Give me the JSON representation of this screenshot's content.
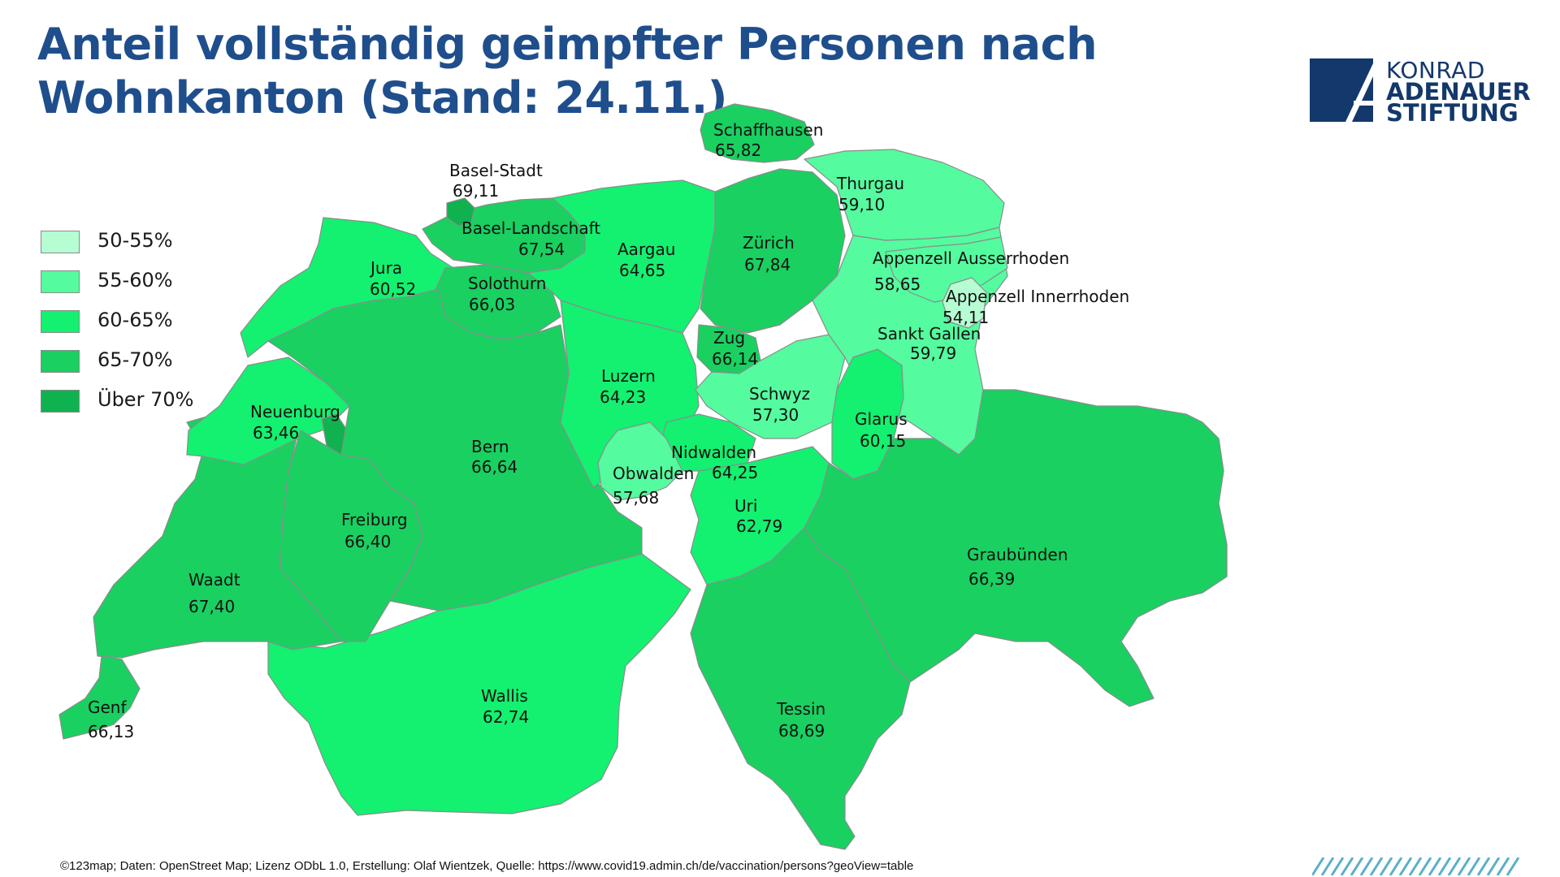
{
  "title": {
    "line1": "Anteil vollständig geimpfter Personen nach",
    "line2": "Wohnkanton (Stand: 24.11.)"
  },
  "logo": {
    "line1": "KONRAD",
    "line2": "ADENAUER",
    "line3": "STIFTUNG",
    "color": "#13386b"
  },
  "legend": [
    {
      "label": "50-55%",
      "color": "#b7fdd3"
    },
    {
      "label": "55-60%",
      "color": "#54fb9f"
    },
    {
      "label": "60-65%",
      "color": "#14f070"
    },
    {
      "label": "65-70%",
      "color": "#19d061"
    },
    {
      "label": "Über 70%",
      "color": "#0fb24f"
    }
  ],
  "cantons": [
    {
      "name": "Schaffhausen",
      "value": "65,82"
    },
    {
      "name": "Basel-Stadt",
      "value": "69,11"
    },
    {
      "name": "Thurgau",
      "value": "59,10"
    },
    {
      "name": "Basel-Landschaft",
      "value": "67,54"
    },
    {
      "name": "Aargau",
      "value": "64,65"
    },
    {
      "name": "Zürich",
      "value": "67,84"
    },
    {
      "name": "Appenzell Ausserrhoden",
      "value": "58,65"
    },
    {
      "name": "Jura",
      "value": "60,52"
    },
    {
      "name": "Solothurn",
      "value": "66,03"
    },
    {
      "name": "Appenzell Innerrhoden",
      "value": "54,11"
    },
    {
      "name": "Zug",
      "value": "66,14"
    },
    {
      "name": "Sankt Gallen",
      "value": "59,79"
    },
    {
      "name": "Luzern",
      "value": "64,23"
    },
    {
      "name": "Schwyz",
      "value": "57,30"
    },
    {
      "name": "Neuenburg",
      "value": "63,46"
    },
    {
      "name": "Glarus",
      "value": "60,15"
    },
    {
      "name": "Bern",
      "value": "66,64"
    },
    {
      "name": "Nidwalden",
      "value": "64,25"
    },
    {
      "name": "Obwalden",
      "value": "57,68"
    },
    {
      "name": "Uri",
      "value": "62,79"
    },
    {
      "name": "Freiburg",
      "value": "66,40"
    },
    {
      "name": "Graubünden",
      "value": "66,39"
    },
    {
      "name": "Waadt",
      "value": "67,40"
    },
    {
      "name": "Wallis",
      "value": "62,74"
    },
    {
      "name": "Tessin",
      "value": "68,69"
    },
    {
      "name": "Genf",
      "value": "66,13"
    }
  ],
  "source": "©123map; Daten: OpenStreet Map; Lizenz ODbL 1.0, Erstellung: Olaf Wientzek, Quelle: https://www.covid19.admin.ch/de/vaccination/persons?geoView=table",
  "colors": {
    "title": "#1f4e8c",
    "border": "#8c8c8c"
  }
}
